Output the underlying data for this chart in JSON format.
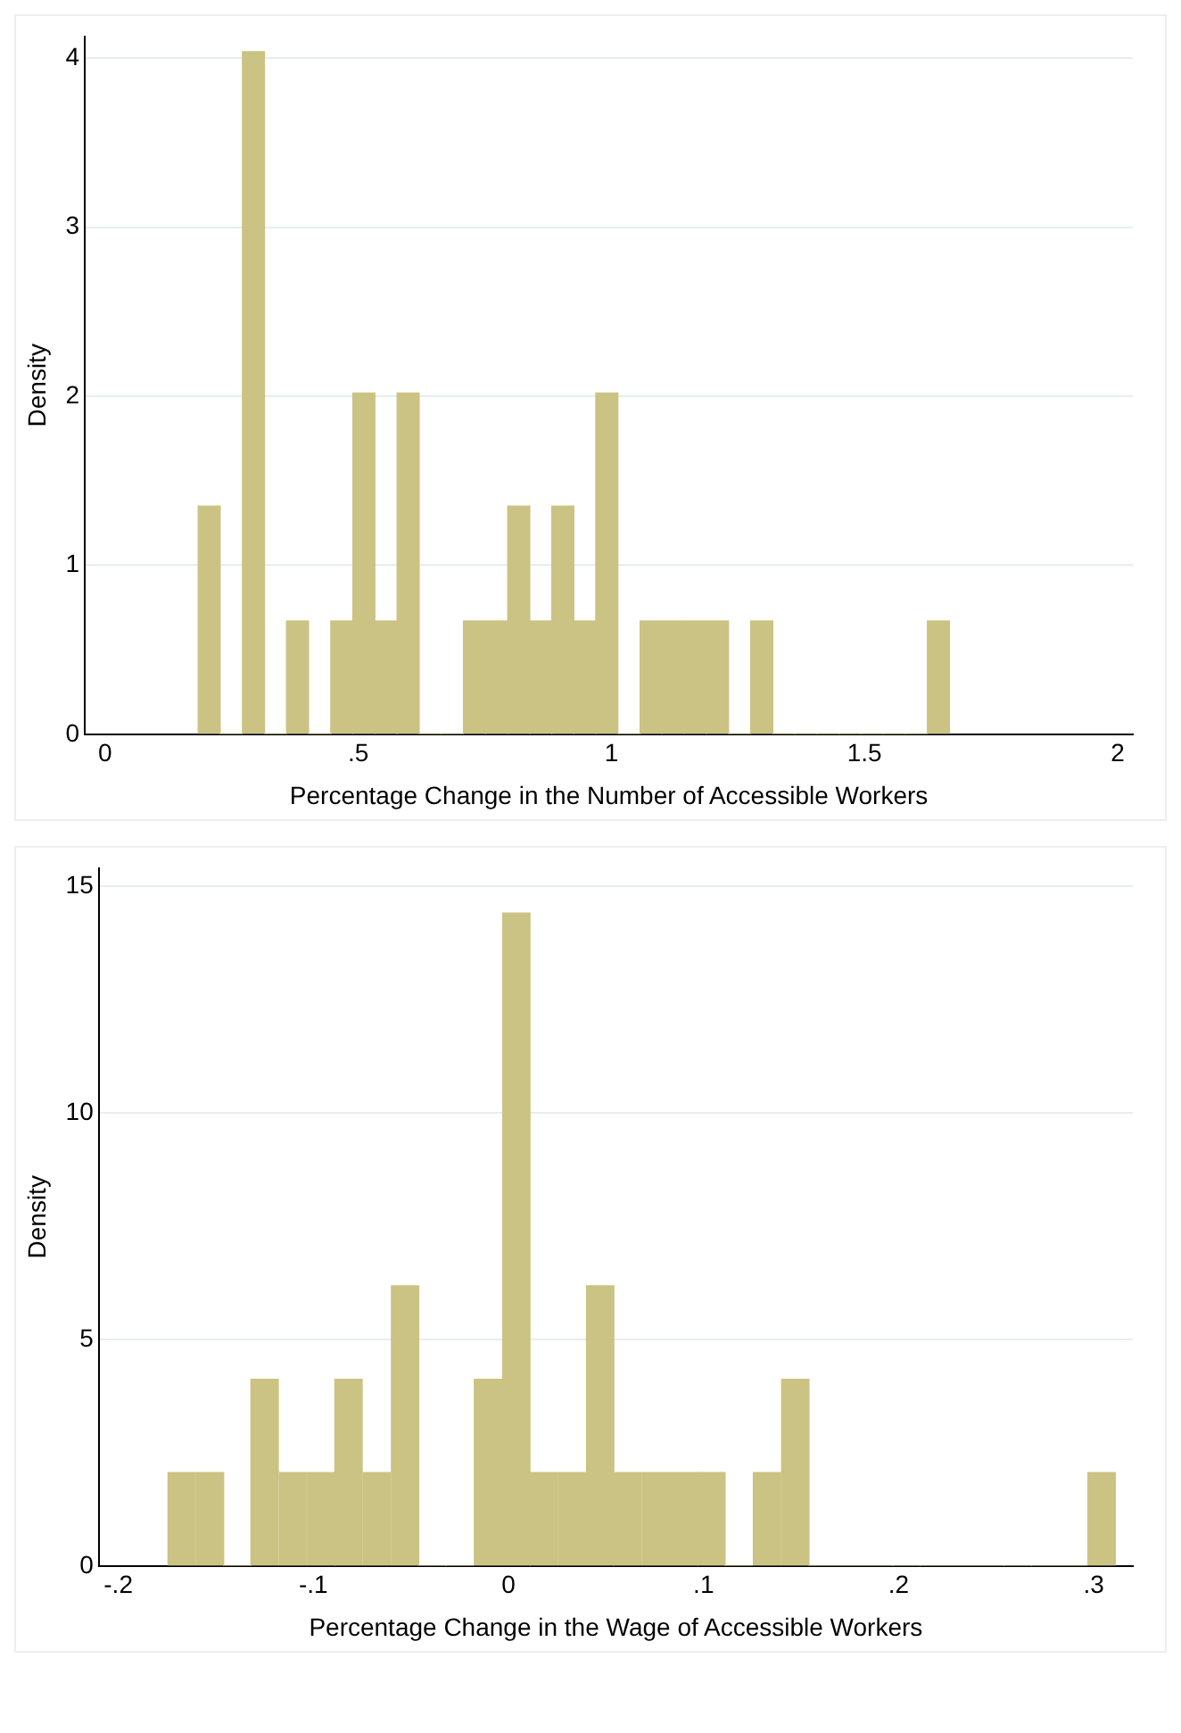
{
  "chart_data": [
    {
      "type": "histogram",
      "xlabel": "Percentage Change in the Number of Accessible Workers",
      "ylabel": "Density",
      "color": "#cbc383",
      "grid": "y",
      "bins": [
        0.184,
        0.227,
        0.271,
        0.315,
        0.358,
        0.402,
        0.446,
        0.489,
        0.533,
        0.577,
        0.62,
        0.664,
        0.708,
        0.751,
        0.795,
        0.839,
        0.882,
        0.926,
        0.969,
        1.013,
        1.057,
        1.1,
        1.144,
        1.188,
        1.231,
        1.275,
        1.319,
        1.362,
        1.406,
        1.45,
        1.493,
        1.537,
        1.581,
        1.624,
        1.668
      ],
      "values": [
        1.35,
        0,
        4.04,
        0,
        0.67,
        0,
        0.67,
        2.02,
        0.67,
        2.02,
        0,
        0,
        0.67,
        0.67,
        1.35,
        0.67,
        1.35,
        0.67,
        2.02,
        0,
        0.67,
        0.67,
        0.67,
        0.67,
        0,
        0.67,
        0,
        0,
        0,
        0,
        0,
        0,
        0,
        0.67
      ],
      "xlim": [
        -0.04,
        2.03
      ],
      "xticks": [
        0,
        {
          "value": 0.5,
          "label": ".5"
        },
        1,
        1.5,
        2
      ],
      "ylim": [
        0,
        4.13
      ],
      "yticks": [
        0,
        1,
        2,
        3,
        4
      ]
    },
    {
      "type": "histogram",
      "xlabel": "Percentage Change in the Wage of Accessible Workers",
      "ylabel": "Density",
      "color": "#cbc383",
      "grid": "y",
      "bins": [
        -0.175,
        -0.16,
        -0.146,
        -0.132,
        -0.118,
        -0.103,
        -0.089,
        -0.075,
        -0.06,
        -0.046,
        -0.032,
        -0.018,
        -0.003,
        0.011,
        0.025,
        0.04,
        0.054,
        0.068,
        0.083,
        0.097,
        0.111,
        0.125,
        0.14,
        0.154,
        0.168,
        0.183,
        0.197,
        0.211,
        0.225,
        0.24,
        0.254,
        0.268,
        0.282,
        0.297,
        0.311
      ],
      "values": [
        2.06,
        2.06,
        0,
        4.12,
        2.06,
        2.06,
        4.12,
        2.06,
        6.18,
        0,
        0,
        4.12,
        14.41,
        2.06,
        2.06,
        6.18,
        2.06,
        2.06,
        2.06,
        2.06,
        0,
        2.06,
        4.12,
        0,
        0,
        0,
        0,
        0,
        0,
        0,
        0,
        0,
        0,
        2.06
      ],
      "xlim": [
        -0.21,
        0.32
      ],
      "xticks": [
        {
          "value": -0.2,
          "label": "-.2"
        },
        {
          "value": -0.1,
          "label": "-.1"
        },
        0,
        {
          "value": 0.1,
          "label": ".1"
        },
        {
          "value": 0.2,
          "label": ".2"
        },
        {
          "value": 0.3,
          "label": ".3"
        }
      ],
      "ylim": [
        0,
        15.4
      ],
      "yticks": [
        0,
        5,
        10,
        15
      ]
    }
  ]
}
